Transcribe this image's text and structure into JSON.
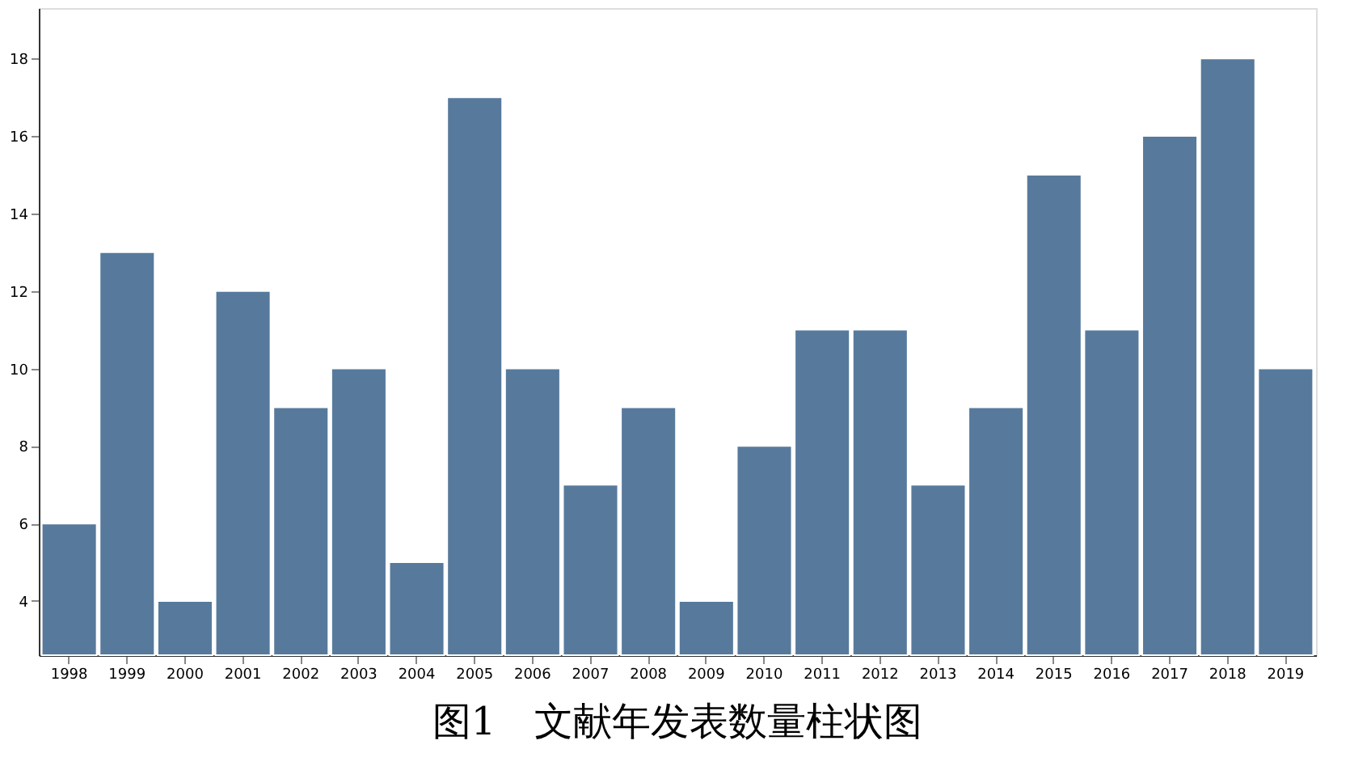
{
  "chart_data": {
    "type": "bar",
    "title": "图1　文献年发表数量柱状图",
    "categories": [
      "1998",
      "1999",
      "2000",
      "2001",
      "2002",
      "2003",
      "2004",
      "2005",
      "2006",
      "2007",
      "2008",
      "2009",
      "2010",
      "2011",
      "2012",
      "2013",
      "2014",
      "2015",
      "2016",
      "2017",
      "2018",
      "2019"
    ],
    "values": [
      6,
      13,
      4,
      12,
      9,
      10,
      5,
      17,
      10,
      7,
      9,
      4,
      8,
      11,
      11,
      7,
      9,
      15,
      11,
      16,
      18,
      10
    ],
    "color": "#577a9c",
    "ylim": [
      2.6,
      19.3
    ],
    "yticks": [
      4,
      6,
      8,
      10,
      12,
      14,
      16,
      18
    ],
    "grid": false
  }
}
